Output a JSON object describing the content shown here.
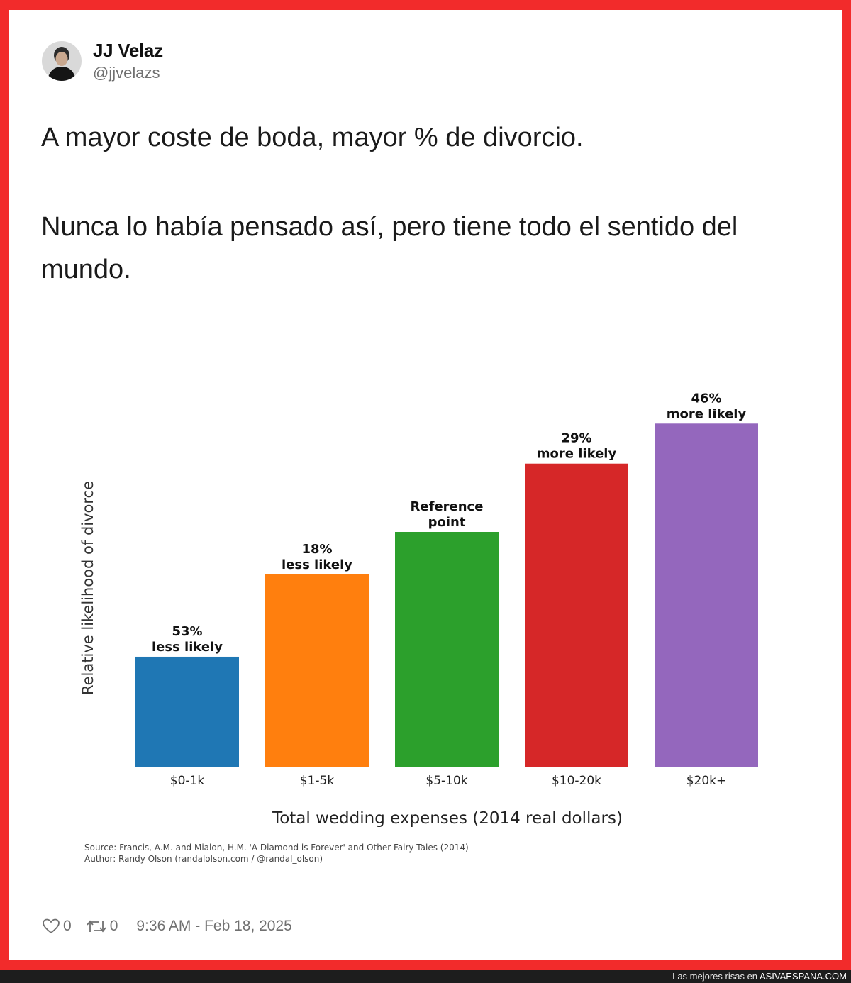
{
  "tweet": {
    "author_name": "JJ Velaz",
    "author_handle": "@jjvelazs",
    "text_line1": "A mayor coste de boda, mayor % de divorcio.",
    "text_line2": "Nunca lo había pensado así, pero tiene todo el sentido del mundo.",
    "likes": "0",
    "retweets": "0",
    "timestamp": "9:36 AM - Feb 18, 2025"
  },
  "chart_data": {
    "type": "bar",
    "categories": [
      "$0-1k",
      "$1-5k",
      "$5-10k",
      "$10-20k",
      "$20k+"
    ],
    "values": [
      0.47,
      0.82,
      1.0,
      1.29,
      1.46
    ],
    "bar_labels": [
      [
        "53%",
        "less likely"
      ],
      [
        "18%",
        "less likely"
      ],
      [
        "Reference",
        "point"
      ],
      [
        "29%",
        "more likely"
      ],
      [
        "46%",
        "more likely"
      ]
    ],
    "colors": [
      "#1f77b4",
      "#ff7f0e",
      "#2ca02c",
      "#d62728",
      "#9467bd"
    ],
    "xlabel": "Total wedding expenses (2014 real dollars)",
    "ylabel": "Relative likelihood of divorce",
    "ylim": [
      0,
      1.6
    ],
    "grid": false,
    "source_line1": "Source: Francis, A.M. and Mialon, H.M. 'A Diamond is Forever' and Other Fairy Tales (2014)",
    "source_line2": "Author: Randy Olson (randalolson.com / @randal_olson)"
  },
  "site": {
    "prefix": "Las mejores risas en ",
    "brand": "ASIVAESPANA.COM"
  },
  "icons": {
    "avatar": "avatar-icon",
    "like": "heart-icon",
    "retweet": "retweet-icon"
  }
}
